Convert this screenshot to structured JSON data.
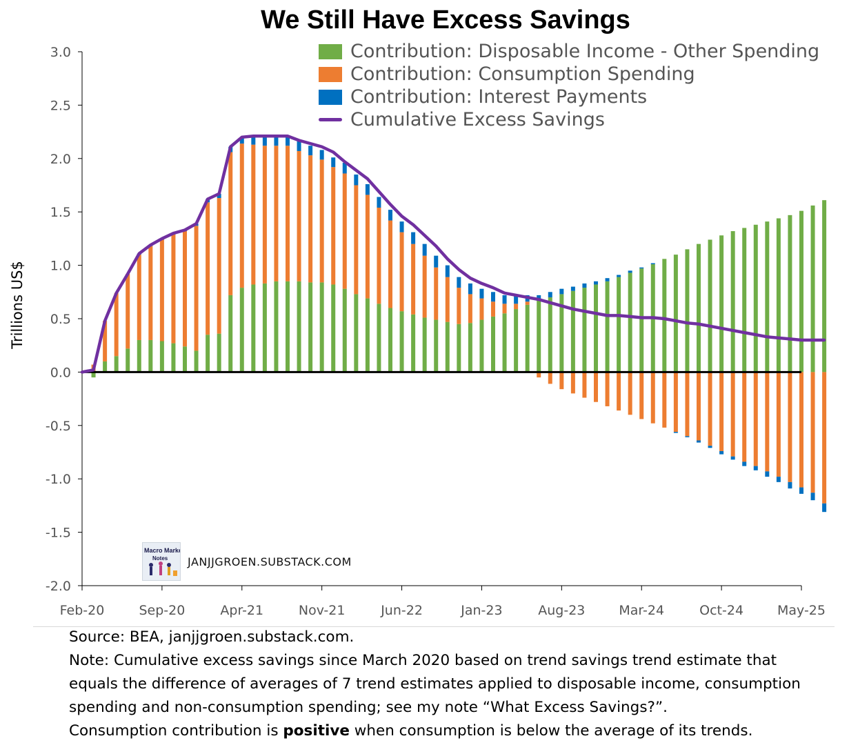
{
  "chart_data": {
    "type": "bar",
    "title": "We Still Have Excess Savings",
    "ylabel": "Trillions US$",
    "xlabel": "",
    "ylim": [
      -2.0,
      3.0
    ],
    "y_ticks": [
      "3.0",
      "2.5",
      "2.0",
      "1.5",
      "1.0",
      "0.5",
      "0.0",
      "-0.5",
      "-1.0",
      "-1.5",
      "-2.0"
    ],
    "x_ticks": [
      "Feb-20",
      "Sep-20",
      "Apr-21",
      "Nov-21",
      "Jun-22",
      "Jan-23",
      "Aug-23",
      "Mar-24",
      "Oct-24",
      "May-25"
    ],
    "bar_mode": "stacked",
    "legend_position": "top-right",
    "grid": false,
    "categories_start": "Mar-20",
    "categories_end": "Apr-25",
    "series": [
      {
        "name": "Contribution: Disposable Income - Other Spending",
        "type": "bar",
        "color": "#70ad47",
        "values": [
          -0.05,
          0.1,
          0.15,
          0.22,
          0.3,
          0.3,
          0.29,
          0.27,
          0.24,
          0.2,
          0.35,
          0.36,
          0.72,
          0.79,
          0.82,
          0.83,
          0.85,
          0.85,
          0.85,
          0.84,
          0.84,
          0.82,
          0.78,
          0.73,
          0.69,
          0.64,
          0.6,
          0.57,
          0.54,
          0.51,
          0.49,
          0.47,
          0.45,
          0.46,
          0.49,
          0.52,
          0.55,
          0.59,
          0.63,
          0.67,
          0.7,
          0.73,
          0.76,
          0.79,
          0.82,
          0.85,
          0.89,
          0.93,
          0.97,
          1.01,
          1.06,
          1.1,
          1.15,
          1.2,
          1.24,
          1.28,
          1.32,
          1.35,
          1.38,
          1.41,
          1.44,
          1.47,
          1.51,
          1.56,
          1.61
        ]
      },
      {
        "name": "Contribution: Consumption Spending",
        "type": "bar",
        "color": "#ed7d31",
        "values": [
          0.07,
          0.38,
          0.59,
          0.7,
          0.8,
          0.88,
          0.95,
          1.02,
          1.08,
          1.17,
          1.24,
          1.27,
          1.34,
          1.35,
          1.31,
          1.29,
          1.27,
          1.27,
          1.22,
          1.19,
          1.15,
          1.1,
          1.08,
          1.02,
          0.97,
          0.9,
          0.82,
          0.74,
          0.66,
          0.58,
          0.49,
          0.42,
          0.34,
          0.27,
          0.2,
          0.14,
          0.09,
          0.05,
          0.03,
          -0.05,
          -0.11,
          -0.16,
          -0.2,
          -0.24,
          -0.28,
          -0.32,
          -0.36,
          -0.4,
          -0.44,
          -0.48,
          -0.52,
          -0.56,
          -0.6,
          -0.64,
          -0.69,
          -0.74,
          -0.79,
          -0.84,
          -0.88,
          -0.93,
          -0.98,
          -1.03,
          -1.08,
          -1.13,
          -1.23
        ]
      },
      {
        "name": "Contribution: Interest Payments",
        "type": "bar",
        "color": "#0070c0",
        "values": [
          0.0,
          0.0,
          0.0,
          0.0,
          0.01,
          0.01,
          0.01,
          0.01,
          0.01,
          0.02,
          0.03,
          0.04,
          0.05,
          0.06,
          0.07,
          0.08,
          0.08,
          0.09,
          0.09,
          0.09,
          0.09,
          0.09,
          0.1,
          0.1,
          0.1,
          0.1,
          0.1,
          0.1,
          0.11,
          0.11,
          0.11,
          0.11,
          0.1,
          0.1,
          0.09,
          0.09,
          0.08,
          0.07,
          0.06,
          0.05,
          0.05,
          0.05,
          0.04,
          0.04,
          0.03,
          0.03,
          0.02,
          0.02,
          0.01,
          0.01,
          0.0,
          -0.01,
          -0.01,
          -0.02,
          -0.02,
          -0.03,
          -0.03,
          -0.04,
          -0.04,
          -0.05,
          -0.05,
          -0.06,
          -0.06,
          -0.07,
          -0.08
        ]
      },
      {
        "name": "Cumulative Excess Savings",
        "type": "line",
        "color": "#7030a0",
        "values": [
          0.02,
          0.48,
          0.74,
          0.92,
          1.11,
          1.19,
          1.25,
          1.3,
          1.33,
          1.39,
          1.62,
          1.67,
          2.11,
          2.2,
          2.21,
          2.21,
          2.21,
          2.21,
          2.17,
          2.14,
          2.11,
          2.06,
          1.97,
          1.89,
          1.81,
          1.69,
          1.57,
          1.46,
          1.38,
          1.28,
          1.18,
          1.06,
          0.96,
          0.88,
          0.83,
          0.79,
          0.74,
          0.72,
          0.7,
          0.68,
          0.65,
          0.62,
          0.59,
          0.57,
          0.55,
          0.53,
          0.53,
          0.52,
          0.51,
          0.51,
          0.5,
          0.48,
          0.46,
          0.45,
          0.43,
          0.41,
          0.39,
          0.37,
          0.35,
          0.33,
          0.32,
          0.31,
          0.3,
          0.3,
          0.3
        ]
      }
    ]
  },
  "watermark": {
    "logo_line1": "Macro Market",
    "logo_line2": "Notes",
    "text": "JANJJGROEN.SUBSTACK.COM"
  },
  "notes": {
    "source": "Source: BEA, janjjgroen.substack.com.",
    "note_line1": "Note: Cumulative excess savings since March 2020 based on trend savings trend estimate that",
    "note_line2": "equals the difference of averages of 7 trend estimates applied to disposable income, consumption",
    "note_line3": "spending and non-consumption spending; see my note “What Excess Savings?”.",
    "note_line4_pre": "Consumption contribution is ",
    "note_line4_bold": "positive",
    "note_line4_post": " when consumption is below the average of its trends."
  }
}
